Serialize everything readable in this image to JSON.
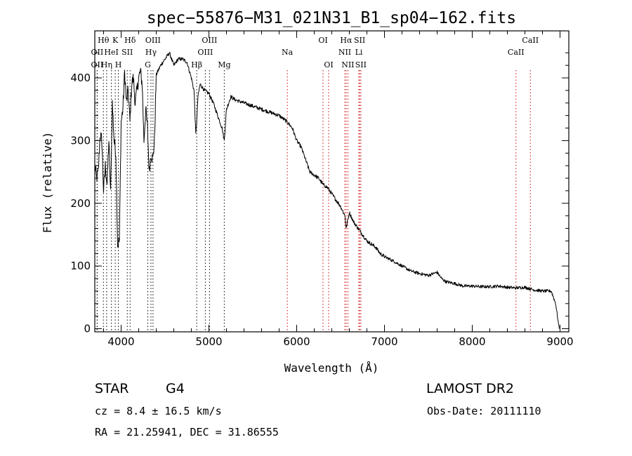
{
  "chart_data": {
    "type": "line",
    "title": "spec−55876−M31_021N31_B1_sp04−162.fits",
    "xlabel": "Wavelength (Å)",
    "ylabel": "Flux (relative)",
    "xlim": [
      3700,
      9100
    ],
    "ylim": [
      -5,
      475
    ],
    "xticks": [
      4000,
      5000,
      6000,
      7000,
      8000,
      9000
    ],
    "yticks": [
      0,
      100,
      200,
      300,
      400
    ],
    "series": [
      {
        "x": [
          3700,
          3720,
          3740,
          3760,
          3780,
          3800,
          3820,
          3840,
          3860,
          3880,
          3900,
          3920,
          3940,
          3960,
          3980,
          4000,
          4020,
          4040,
          4060,
          4080,
          4100,
          4120,
          4140,
          4160,
          4180,
          4200,
          4220,
          4240,
          4260,
          4280,
          4300,
          4320,
          4340,
          4360,
          4380,
          4400,
          4450,
          4500,
          4550,
          4600,
          4650,
          4700,
          4750,
          4800,
          4830,
          4850,
          4861,
          4875,
          4900,
          4950,
          5000,
          5050,
          5100,
          5150,
          5175,
          5185,
          5200,
          5250,
          5300,
          5400,
          5500,
          5600,
          5700,
          5800,
          5890,
          5950,
          6000,
          6050,
          6100,
          6150,
          6200,
          6250,
          6300,
          6350,
          6400,
          6450,
          6500,
          6550,
          6563,
          6600,
          6650,
          6700,
          6750,
          6800,
          6850,
          6900,
          6950,
          7000,
          7100,
          7200,
          7300,
          7400,
          7500,
          7600,
          7650,
          7700,
          7800,
          7900,
          8000,
          8100,
          8200,
          8300,
          8400,
          8500,
          8600,
          8700,
          8800,
          8900,
          8950,
          8990
        ],
        "y": [
          260,
          240,
          250,
          310,
          300,
          220,
          260,
          230,
          300,
          215,
          360,
          300,
          280,
          135,
          140,
          330,
          350,
          410,
          360,
          380,
          330,
          390,
          400,
          360,
          380,
          400,
          410,
          390,
          300,
          350,
          320,
          250,
          280,
          270,
          300,
          405,
          420,
          430,
          440,
          420,
          430,
          430,
          425,
          400,
          380,
          310,
          330,
          370,
          390,
          380,
          375,
          360,
          340,
          320,
          300,
          320,
          350,
          370,
          365,
          360,
          355,
          350,
          345,
          340,
          330,
          320,
          300,
          290,
          270,
          250,
          245,
          240,
          230,
          225,
          215,
          205,
          195,
          180,
          160,
          185,
          170,
          160,
          150,
          140,
          135,
          130,
          120,
          115,
          108,
          100,
          92,
          88,
          85,
          90,
          80,
          75,
          72,
          68,
          68,
          67,
          67,
          68,
          66,
          65,
          66,
          62,
          60,
          60,
          40,
          0
        ]
      }
    ],
    "lines": [
      {
        "name": "Hθ",
        "x": 3798,
        "color": "#000000",
        "row": 0
      },
      {
        "name": "OII",
        "x": 3727,
        "color": "#000000",
        "row": 1
      },
      {
        "name": "OII",
        "x": 3727,
        "color": "#000000",
        "row": 2
      },
      {
        "name": "K",
        "x": 3933,
        "color": "#000000",
        "row": 0
      },
      {
        "name": "HeI",
        "x": 3889,
        "color": "#000000",
        "row": 1
      },
      {
        "name": "Hη",
        "x": 3835,
        "color": "#000000",
        "row": 2
      },
      {
        "name": "SII",
        "x": 4070,
        "color": "#000000",
        "row": 1
      },
      {
        "name": "H",
        "x": 3968,
        "color": "#000000",
        "row": 2
      },
      {
        "name": "Hδ",
        "x": 4102,
        "color": "#000000",
        "row": 0
      },
      {
        "name": "OIII",
        "x": 4363,
        "color": "#000000",
        "row": 0
      },
      {
        "name": "Hγ",
        "x": 4340,
        "color": "#000000",
        "row": 1
      },
      {
        "name": "G",
        "x": 4304,
        "color": "#000000",
        "row": 2
      },
      {
        "name": "OIII",
        "x": 5007,
        "color": "#000000",
        "row": 0
      },
      {
        "name": "OIII",
        "x": 4959,
        "color": "#000000",
        "row": 1
      },
      {
        "name": "Hβ",
        "x": 4861,
        "color": "#000000",
        "row": 2
      },
      {
        "name": "Mg",
        "x": 5175,
        "color": "#000000",
        "row": 2
      },
      {
        "name": "Na",
        "x": 5893,
        "color": "#cc0000",
        "row": 1
      },
      {
        "name": "OI",
        "x": 6300,
        "color": "#cc0000",
        "row": 0
      },
      {
        "name": "OI",
        "x": 6364,
        "color": "#cc0000",
        "row": 2
      },
      {
        "name": "Hα",
        "x": 6563,
        "color": "#cc0000",
        "row": 0
      },
      {
        "name": "SII",
        "x": 6717,
        "color": "#cc0000",
        "row": 0
      },
      {
        "name": "NII",
        "x": 6548,
        "color": "#cc0000",
        "row": 1
      },
      {
        "name": "NII",
        "x": 6583,
        "color": "#cc0000",
        "row": 2
      },
      {
        "name": "Li",
        "x": 6708,
        "color": "#cc0000",
        "row": 1
      },
      {
        "name": "SII",
        "x": 6731,
        "color": "#cc0000",
        "row": 2
      },
      {
        "name": "CaII",
        "x": 8662,
        "color": "#cc0000",
        "row": 0
      },
      {
        "name": "CaII",
        "x": 8498,
        "color": "#cc0000",
        "row": 1
      }
    ]
  },
  "footer": {
    "object_class": "STAR",
    "subclass": "G4",
    "survey": "LAMOST DR2",
    "cz": "cz = 8.4 ± 16.5 km/s",
    "obs_date": "Obs-Date: 20111110",
    "coords": "RA =  21.25941, DEC =  31.86555"
  }
}
